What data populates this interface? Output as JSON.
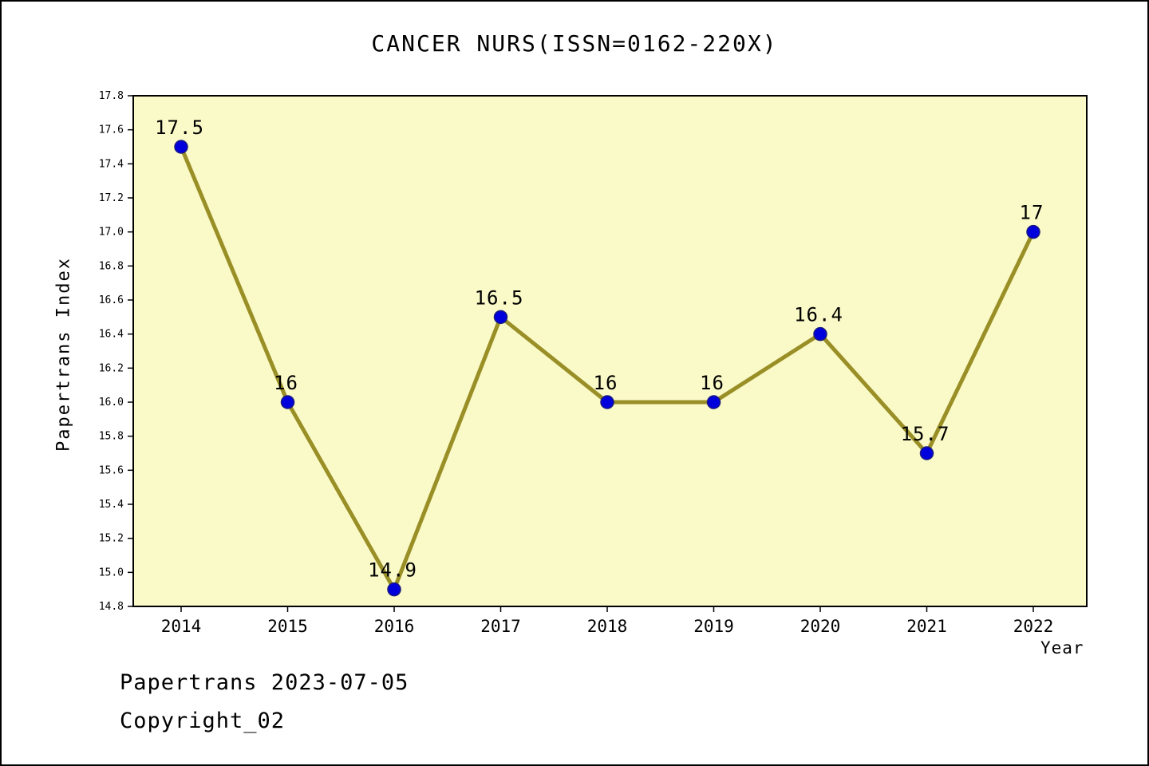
{
  "chart_data": {
    "type": "line",
    "title": "CANCER NURS(ISSN=0162-220X)",
    "xlabel": "Year",
    "ylabel": "Papertrans Index",
    "categories": [
      "2014",
      "2015",
      "2016",
      "2017",
      "2018",
      "2019",
      "2020",
      "2021",
      "2022"
    ],
    "values": [
      17.5,
      16,
      14.9,
      16.5,
      16,
      16,
      16.4,
      15.7,
      17
    ],
    "point_labels": [
      "17.5",
      "16",
      "14.9",
      "16.5",
      "16",
      "16",
      "16.4",
      "15.7",
      "17"
    ],
    "ylim": [
      14.8,
      17.8
    ],
    "ytick_step": 0.2,
    "grid": false,
    "legend": "none",
    "colors": {
      "plot_bg": "#fafac8",
      "line": "#998f26",
      "point": "#0000dd",
      "point_edge": "#1a1a80",
      "axis": "#000000"
    }
  },
  "footer": {
    "line1": "Papertrans 2023-07-05",
    "line2": "Copyright_02"
  }
}
